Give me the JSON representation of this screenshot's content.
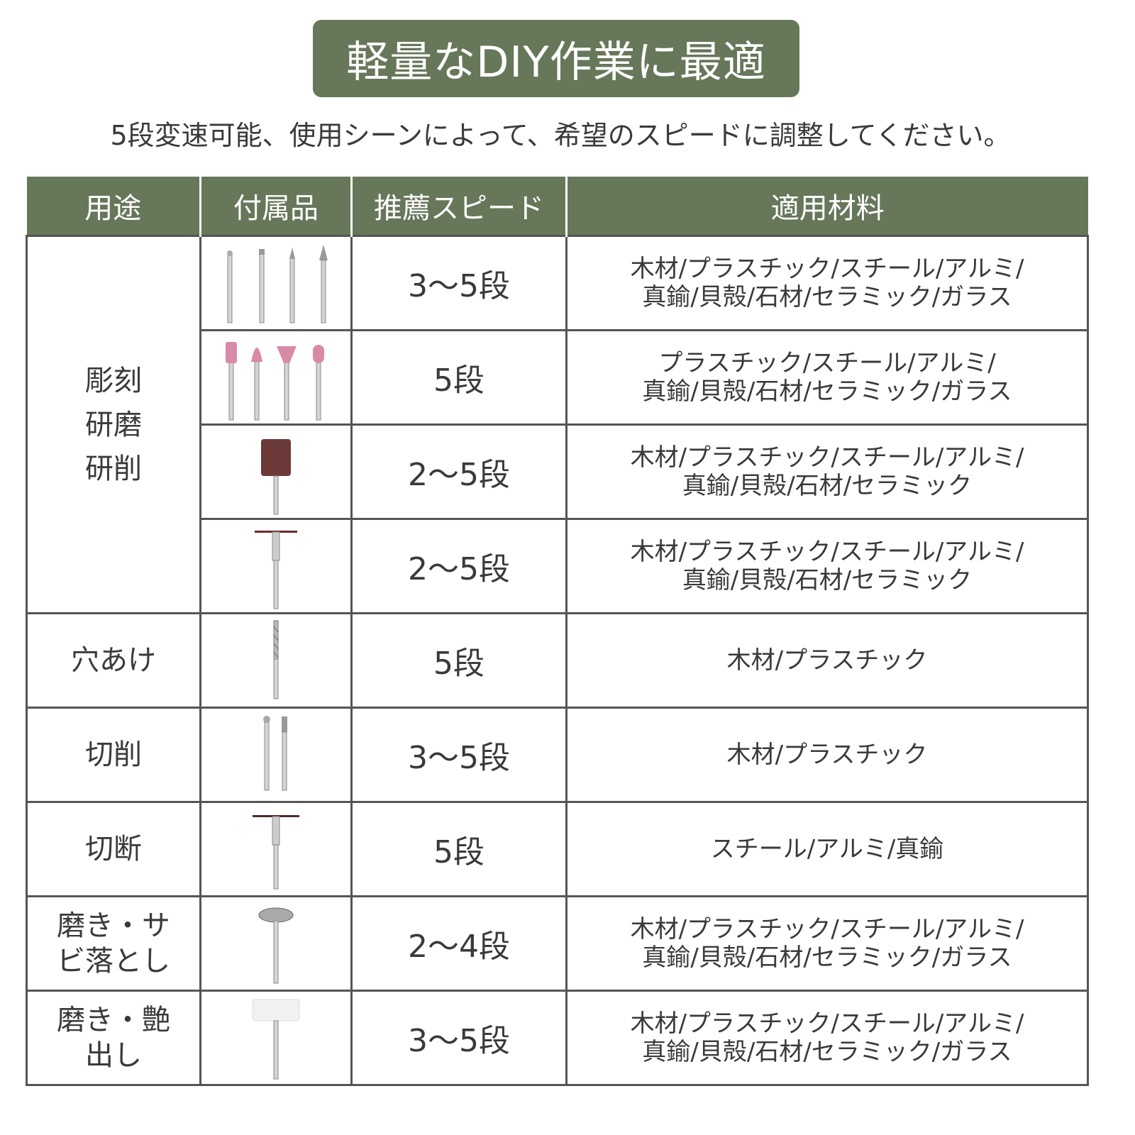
{
  "banner_title": "軽量なDIY作業に最適",
  "subtitle": "5段変速可能、使用シーンによって、希望のスピードに調整してください。",
  "colors": {
    "accent": "#67775a",
    "border": "#555555"
  },
  "table": {
    "headers": [
      "用途",
      "付属品",
      "推薦スピード",
      "適用材料"
    ],
    "groups": [
      {
        "use": "彫刻\n研磨\n研削",
        "rows": [
          {
            "accessory": "engraving-bits-icon",
            "speed": "3〜5段",
            "materials": [
              "木材/プラスチック/スチール/アルミ/",
              "真鍮/貝殻/石材/セラミック/ガラス"
            ]
          },
          {
            "accessory": "grinding-stones-icon",
            "speed": "5段",
            "materials": [
              "プラスチック/スチール/アルミ/",
              "真鍮/貝殻/石材/セラミック/ガラス"
            ]
          },
          {
            "accessory": "sanding-drum-icon",
            "speed": "2〜5段",
            "materials": [
              "木材/プラスチック/スチール/アルミ/",
              "真鍮/貝殻/石材/セラミック"
            ]
          },
          {
            "accessory": "cutting-disc-mandrel-icon",
            "speed": "2〜5段",
            "materials": [
              "木材/プラスチック/スチール/アルミ/",
              "真鍮/貝殻/石材/セラミック"
            ]
          }
        ]
      },
      {
        "use": "穴あけ",
        "rows": [
          {
            "accessory": "drill-bit-icon",
            "speed": "5段",
            "materials": [
              "木材/プラスチック"
            ]
          }
        ]
      },
      {
        "use": "切削",
        "rows": [
          {
            "accessory": "cutter-bits-icon",
            "speed": "3〜5段",
            "materials": [
              "木材/プラスチック"
            ]
          }
        ]
      },
      {
        "use": "切断",
        "rows": [
          {
            "accessory": "cutting-disc-icon",
            "speed": "5段",
            "materials": [
              "スチール/アルミ/真鍮"
            ]
          }
        ]
      },
      {
        "use": "磨き・サ\nビ落とし",
        "rows": [
          {
            "accessory": "wire-wheel-icon",
            "speed": "2〜4段",
            "materials": [
              "木材/プラスチック/スチール/アルミ/",
              "真鍮/貝殻/石材/セラミック/ガラス"
            ]
          }
        ]
      },
      {
        "use": "磨き・艶\n出し",
        "rows": [
          {
            "accessory": "felt-wheel-icon",
            "speed": "3〜5段",
            "materials": [
              "木材/プラスチック/スチール/アルミ/",
              "真鍮/貝殻/石材/セラミック/ガラス"
            ]
          }
        ]
      }
    ]
  }
}
